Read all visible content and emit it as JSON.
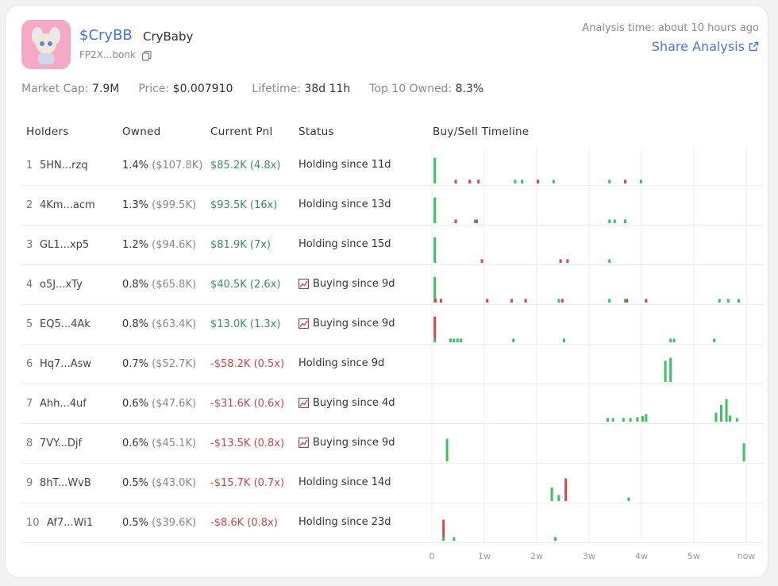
{
  "token": {
    "ticker": "$CryBB",
    "name": "CryBaby",
    "address": "FP2X...bonk",
    "analysis_time": "Analysis time: about 10 hours ago",
    "share_label": "Share Analysis"
  },
  "stats": {
    "market_cap_label": "Market Cap:",
    "market_cap": "7.9M",
    "price_label": "Price:",
    "price": "$0.007910",
    "lifetime_label": "Lifetime:",
    "lifetime": "38d 11h",
    "top10_label": "Top 10 Owned:",
    "top10": "8.3%"
  },
  "columns": {
    "holders": "Holders",
    "owned": "Owned",
    "pnl": "Current Pnl",
    "status": "Status",
    "timeline": "Buy/Sell Timeline"
  },
  "timeline_ticks": [
    "0",
    "1w",
    "2w",
    "3w",
    "4w",
    "5w",
    "now"
  ],
  "colors": {
    "buy": "#3cc065",
    "sell": "#d9444a",
    "accent": "#4b73d6"
  },
  "holders": [
    {
      "rank": "1",
      "address": "5HN...rzq",
      "owned_pct": "1.4%",
      "owned_usd": "($107.8K)",
      "pnl": "$85.2K (4.8x)",
      "pnl_sign": "pos",
      "status": "Holding since 11d",
      "status_icon": false,
      "trades": [
        [
          0.1,
          0.85,
          "b"
        ],
        [
          1.3,
          0.12,
          "s"
        ],
        [
          2.1,
          0.12,
          "s"
        ],
        [
          2.6,
          0.12,
          "s"
        ],
        [
          4.7,
          0.12,
          "b"
        ],
        [
          5.1,
          0.12,
          "b"
        ],
        [
          6.0,
          0.12,
          "s"
        ],
        [
          6.9,
          0.12,
          "b"
        ],
        [
          10.1,
          0.12,
          "b"
        ],
        [
          11.0,
          0.12,
          "s"
        ],
        [
          11.9,
          0.12,
          "b"
        ]
      ]
    },
    {
      "rank": "2",
      "address": "4Km...acm",
      "owned_pct": "1.3%",
      "owned_usd": "($99.5K)",
      "pnl": "$93.5K (16x)",
      "pnl_sign": "pos",
      "status": "Holding since 13d",
      "status_icon": false,
      "trades": [
        [
          0.1,
          0.85,
          "b"
        ],
        [
          1.3,
          0.12,
          "s"
        ],
        [
          2.4,
          0.12,
          "b"
        ],
        [
          2.5,
          0.12,
          "s"
        ],
        [
          10.1,
          0.12,
          "b"
        ],
        [
          10.4,
          0.12,
          "b"
        ],
        [
          11.0,
          0.12,
          "b"
        ]
      ]
    },
    {
      "rank": "3",
      "address": "GL1...xp5",
      "owned_pct": "1.2%",
      "owned_usd": "($94.6K)",
      "pnl": "$81.9K (7x)",
      "pnl_sign": "pos",
      "status": "Holding since 15d",
      "status_icon": false,
      "trades": [
        [
          0.1,
          0.85,
          "b"
        ],
        [
          2.8,
          0.12,
          "s"
        ],
        [
          7.3,
          0.12,
          "s"
        ],
        [
          7.7,
          0.12,
          "s"
        ],
        [
          10.1,
          0.12,
          "b"
        ]
      ]
    },
    {
      "rank": "4",
      "address": "o5J...xTy",
      "owned_pct": "0.8%",
      "owned_usd": "($65.8K)",
      "pnl": "$40.5K (2.6x)",
      "pnl_sign": "pos",
      "status": "Buying since 9d",
      "status_icon": true,
      "trades": [
        [
          0.1,
          0.85,
          "b"
        ],
        [
          0.15,
          0.12,
          "s"
        ],
        [
          0.45,
          0.12,
          "s"
        ],
        [
          3.1,
          0.12,
          "s"
        ],
        [
          4.5,
          0.12,
          "s"
        ],
        [
          5.3,
          0.12,
          "s"
        ],
        [
          7.2,
          0.12,
          "b"
        ],
        [
          7.4,
          0.12,
          "s"
        ],
        [
          10.1,
          0.12,
          "b"
        ],
        [
          11.0,
          0.12,
          "b"
        ],
        [
          11.1,
          0.12,
          "s"
        ],
        [
          12.2,
          0.12,
          "s"
        ],
        [
          16.4,
          0.12,
          "b"
        ],
        [
          16.9,
          0.12,
          "b"
        ],
        [
          17.5,
          0.12,
          "b"
        ]
      ]
    },
    {
      "rank": "5",
      "address": "EQ5...4Ak",
      "owned_pct": "0.8%",
      "owned_usd": "($63.4K)",
      "pnl": "$13.0K (1.3x)",
      "pnl_sign": "pos",
      "status": "Buying since 9d",
      "status_icon": true,
      "trades": [
        [
          0.1,
          0.85,
          "s"
        ],
        [
          0.1,
          0.12,
          "b"
        ],
        [
          1.0,
          0.12,
          "b"
        ],
        [
          1.2,
          0.12,
          "b"
        ],
        [
          1.4,
          0.12,
          "b"
        ],
        [
          1.6,
          0.12,
          "b"
        ],
        [
          4.6,
          0.12,
          "b"
        ],
        [
          7.5,
          0.12,
          "b"
        ],
        [
          13.6,
          0.12,
          "b"
        ],
        [
          13.8,
          0.12,
          "b"
        ],
        [
          16.1,
          0.12,
          "b"
        ]
      ]
    },
    {
      "rank": "6",
      "address": "Hq7...Asw",
      "owned_pct": "0.7%",
      "owned_usd": "($52.7K)",
      "pnl": "-$58.2K (0.5x)",
      "pnl_sign": "neg",
      "status": "Holding since 9d",
      "status_icon": false,
      "trades": [
        [
          13.3,
          0.7,
          "b"
        ],
        [
          13.6,
          0.8,
          "b"
        ]
      ]
    },
    {
      "rank": "7",
      "address": "Ahh...4uf",
      "owned_pct": "0.6%",
      "owned_usd": "($47.6K)",
      "pnl": "-$31.6K (0.6x)",
      "pnl_sign": "neg",
      "status": "Buying since 4d",
      "status_icon": true,
      "trades": [
        [
          10.0,
          0.12,
          "b"
        ],
        [
          10.3,
          0.12,
          "b"
        ],
        [
          10.9,
          0.12,
          "b"
        ],
        [
          11.3,
          0.12,
          "b"
        ],
        [
          11.7,
          0.15,
          "b"
        ],
        [
          12.0,
          0.18,
          "b"
        ],
        [
          12.2,
          0.25,
          "b"
        ],
        [
          16.2,
          0.3,
          "b"
        ],
        [
          16.5,
          0.55,
          "b"
        ],
        [
          16.8,
          0.75,
          "b"
        ],
        [
          17.0,
          0.2,
          "b"
        ],
        [
          17.4,
          0.12,
          "b"
        ]
      ]
    },
    {
      "rank": "8",
      "address": "7VY...Djf",
      "owned_pct": "0.6%",
      "owned_usd": "($45.1K)",
      "pnl": "-$13.5K (0.8x)",
      "pnl_sign": "neg",
      "status": "Buying since 9d",
      "status_icon": true,
      "trades": [
        [
          0.8,
          0.75,
          "b"
        ],
        [
          17.8,
          0.6,
          "b"
        ]
      ]
    },
    {
      "rank": "9",
      "address": "8hT...WvB",
      "owned_pct": "0.5%",
      "owned_usd": "($43.0K)",
      "pnl": "-$15.7K (0.7x)",
      "pnl_sign": "neg",
      "status": "Holding since 14d",
      "status_icon": false,
      "trades": [
        [
          6.8,
          0.45,
          "b"
        ],
        [
          7.2,
          0.2,
          "b"
        ],
        [
          7.6,
          0.75,
          "s"
        ],
        [
          11.2,
          0.12,
          "b"
        ]
      ]
    },
    {
      "rank": "10",
      "address": "Af7...Wi1",
      "owned_pct": "0.5%",
      "owned_usd": "($39.6K)",
      "pnl": "-$8.6K (0.8x)",
      "pnl_sign": "neg",
      "status": "Holding since 23d",
      "status_icon": false,
      "trades": [
        [
          0.6,
          0.7,
          "s"
        ],
        [
          0.6,
          0.12,
          "b"
        ],
        [
          1.2,
          0.12,
          "b"
        ],
        [
          7.0,
          0.12,
          "b"
        ]
      ]
    }
  ]
}
